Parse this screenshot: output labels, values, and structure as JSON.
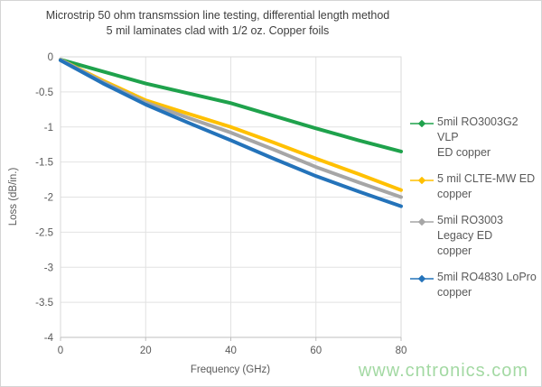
{
  "watermark": "www.cntronics.com",
  "chart_data": {
    "type": "line",
    "title": "Microstrip 50 ohm transmssion line testing, differential length method",
    "subtitle": "5 mil laminates clad with 1/2 oz. Copper foils",
    "xlabel": "Frequency (GHz)",
    "ylabel": "Loss (dB/in.)",
    "xlim": [
      0,
      80
    ],
    "ylim": [
      -4,
      0
    ],
    "x_ticks": [
      0,
      20,
      40,
      60,
      80
    ],
    "y_ticks": [
      0,
      -0.5,
      -1,
      -1.5,
      -2,
      -2.5,
      -3,
      -3.5,
      -4
    ],
    "grid": true,
    "legend_position": "right",
    "x": [
      0,
      10,
      20,
      30,
      40,
      50,
      60,
      70,
      80
    ],
    "series": [
      {
        "name": "5mil RO3003G2 VLP ED copper",
        "display": "5mil RO3003G2 VLP\nED copper",
        "color": "#1fa24c",
        "values": [
          -0.04,
          -0.21,
          -0.38,
          -0.52,
          -0.66,
          -0.84,
          -1.02,
          -1.19,
          -1.35
        ]
      },
      {
        "name": "5 mil CLTE-MW ED copper",
        "display": "5 mil CLTE-MW ED\ncopper",
        "color": "#ffc000",
        "values": [
          -0.04,
          -0.34,
          -0.62,
          -0.81,
          -1.0,
          -1.22,
          -1.45,
          -1.67,
          -1.9
        ]
      },
      {
        "name": "5mil RO3003 Legacy ED copper",
        "display": "5mil RO3003 Legacy ED\ncopper",
        "color": "#a6a6a6",
        "values": [
          -0.04,
          -0.36,
          -0.65,
          -0.87,
          -1.08,
          -1.32,
          -1.57,
          -1.79,
          -2.0
        ]
      },
      {
        "name": "5mil RO4830 LoPro copper",
        "display": "5mil RO4830 LoPro\ncopper",
        "color": "#2473ba",
        "values": [
          -0.05,
          -0.38,
          -0.68,
          -0.94,
          -1.19,
          -1.45,
          -1.7,
          -1.92,
          -2.13
        ]
      }
    ],
    "colors": {
      "grid": "#e2e2e2",
      "plot_border": "#d9d9d9",
      "axis_line": "#bfbfbf",
      "tick_text": "#595959",
      "title_text": "#3f3f3f"
    }
  }
}
